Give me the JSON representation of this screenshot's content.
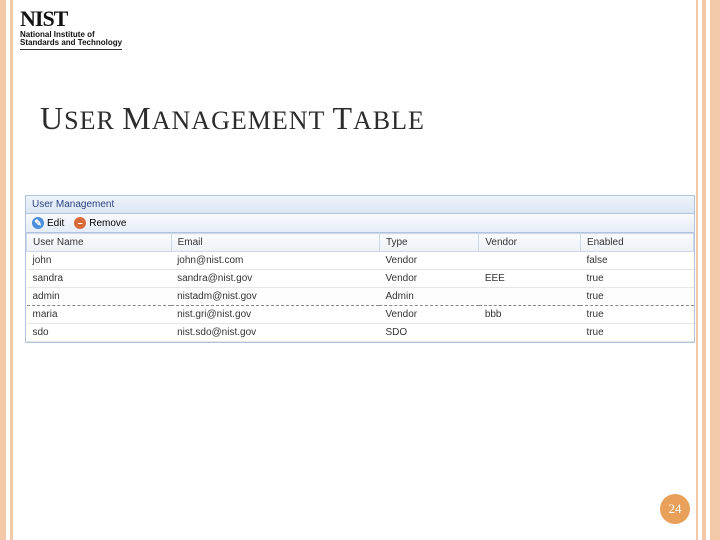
{
  "logo": {
    "main": "NIST",
    "sub_line1": "National Institute of",
    "sub_line2": "Standards and Technology"
  },
  "slide": {
    "title_parts": [
      "U",
      "SER ",
      "M",
      "ANAGEMENT ",
      "T",
      "ABLE"
    ],
    "page_number": "24"
  },
  "panel": {
    "title": "User Management",
    "toolbar": {
      "edit_label": "Edit",
      "remove_label": "Remove"
    },
    "columns": [
      "User Name",
      "Email",
      "Type",
      "Vendor",
      "Enabled"
    ],
    "rows": [
      {
        "cells": [
          "john",
          "john@nist.com",
          "Vendor",
          "",
          "false"
        ],
        "selected": false
      },
      {
        "cells": [
          "sandra",
          "sandra@nist.gov",
          "Vendor",
          "EEE",
          "true"
        ],
        "selected": false
      },
      {
        "cells": [
          "admin",
          "nistadm@nist.gov",
          "Admin",
          "",
          "true"
        ],
        "selected": true
      },
      {
        "cells": [
          "maria",
          "nist.gri@nist.gov",
          "Vendor",
          "bbb",
          "true"
        ],
        "selected": false
      },
      {
        "cells": [
          "sdo",
          "nist.sdo@nist.gov",
          "SDO",
          "",
          "true"
        ],
        "selected": false
      }
    ]
  },
  "style": {
    "accent": "#e8a05a",
    "stripe": "#f4c9a8",
    "panel_border": "#b0c4de"
  }
}
